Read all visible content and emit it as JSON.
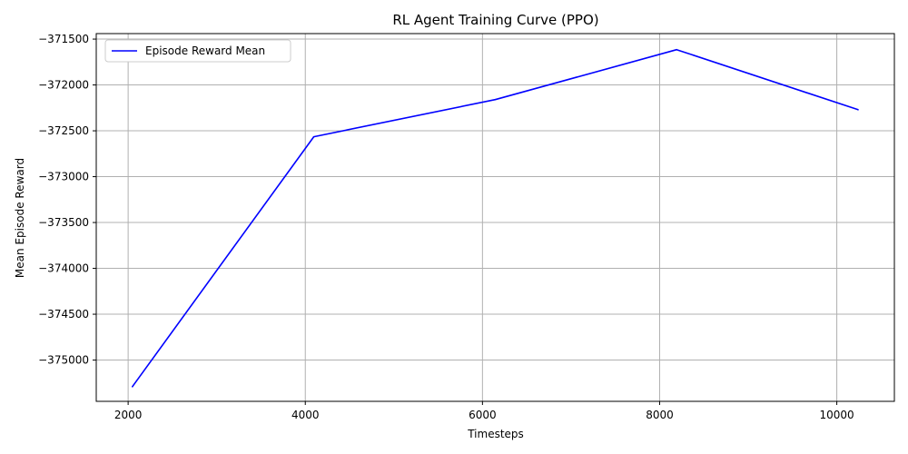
{
  "chart_data": {
    "type": "line",
    "title": "RL Agent Training Curve (PPO)",
    "xlabel": "Timesteps",
    "ylabel": "Mean Episode Reward",
    "xlim": [
      1640,
      10650
    ],
    "ylim": [
      -375450,
      -371440
    ],
    "xticks": [
      2000,
      4000,
      6000,
      8000,
      10000
    ],
    "yticks": [
      -375000,
      -374500,
      -374000,
      -373500,
      -373000,
      -372500,
      -372000,
      -371500
    ],
    "grid": true,
    "legend_position": "top-left",
    "series": [
      {
        "name": "Episode Reward Mean",
        "color": "#0000ff",
        "x": [
          2048,
          4096,
          6144,
          8192,
          10240
        ],
        "y": [
          -375290,
          -372565,
          -372160,
          -371615,
          -372270
        ]
      }
    ]
  }
}
